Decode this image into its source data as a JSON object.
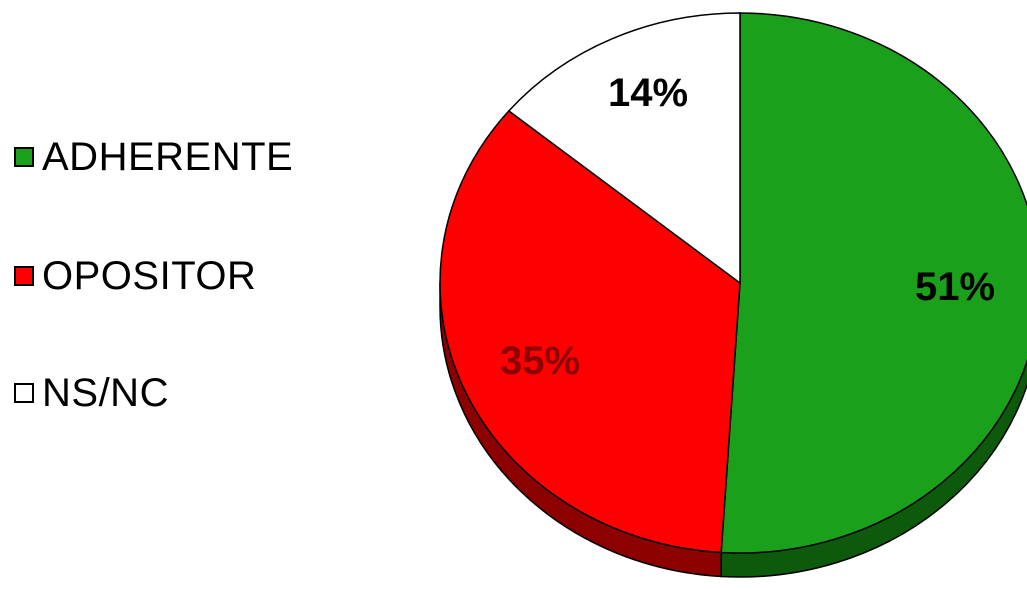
{
  "chart_data": {
    "type": "pie",
    "slices": [
      {
        "label": "ADHERENTE",
        "value": 51,
        "value_label": "51%",
        "color": "#1aa01a",
        "side_color": "#0d5a0d",
        "label_color": "#000000"
      },
      {
        "label": "OPOSITOR",
        "value": 35,
        "value_label": "35%",
        "color": "#ff0000",
        "side_color": "#8c0000",
        "label_color": "#8c0000"
      },
      {
        "label": "NS/NC",
        "value": 14,
        "value_label": "14%",
        "color": "#ffffff",
        "side_color": "#ffffff",
        "label_color": "#000000"
      }
    ],
    "legend_position": "left",
    "start_angle": "12 o'clock",
    "direction": "clockwise",
    "style": "3d"
  }
}
